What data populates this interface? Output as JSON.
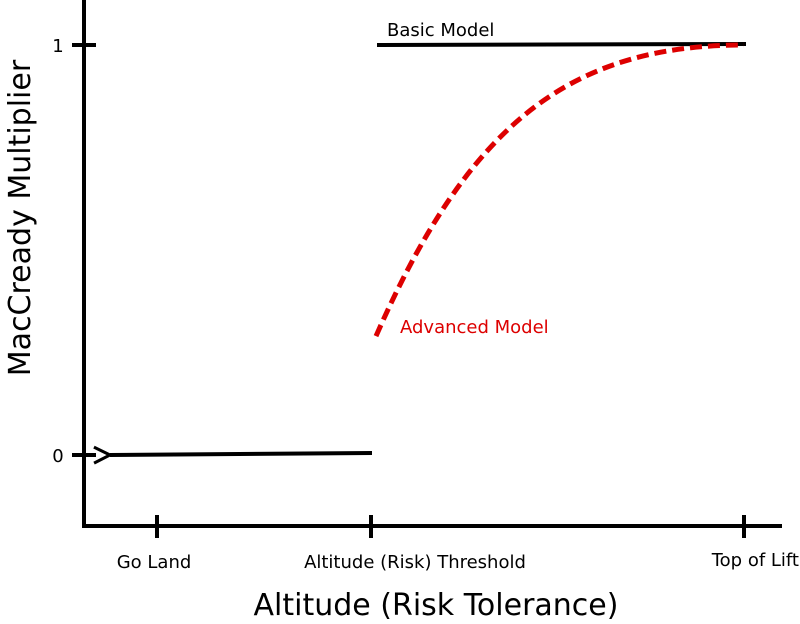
{
  "chart_data": {
    "type": "line",
    "title": "",
    "xlabel": "Altitude (Risk Tolerance)",
    "ylabel": "MacCready Multiplier",
    "x_categories": [
      "Go Land",
      "Altitude (Risk) Threshold",
      "Top of Lift"
    ],
    "y_ticks": [
      "0",
      "1"
    ],
    "ylim": [
      0,
      1
    ],
    "grid": false,
    "series": [
      {
        "name": "Basic Model",
        "color": "#000000",
        "style": "solid",
        "points": [
          [
            "Altitude (Risk) Threshold",
            1
          ],
          [
            "Top of Lift",
            1
          ]
        ]
      },
      {
        "name": "Advanced Model",
        "color": "#dd0000",
        "style": "dashed",
        "points": [
          [
            "Altitude (Risk) Threshold",
            0.29
          ],
          [
            "Top of Lift",
            1
          ]
        ]
      },
      {
        "name": "",
        "color": "#000000",
        "style": "solid-arrow",
        "points": [
          [
            "Altitude (Risk) Threshold",
            0
          ],
          [
            "Go Land",
            0
          ]
        ]
      }
    ]
  }
}
